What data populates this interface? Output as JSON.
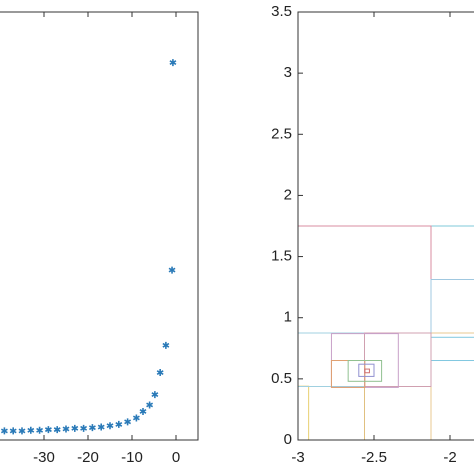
{
  "chart_data": [
    {
      "type": "scatter",
      "color": "#2a7ab8",
      "marker": "asterisk",
      "x": [
        -39,
        -37,
        -35,
        -33,
        -31,
        -29,
        -27,
        -25,
        -23,
        -21,
        -19,
        -17,
        -15,
        -13,
        -11,
        -9,
        -7.5,
        -6,
        -4.8,
        -3.6,
        -2.3,
        -0.9,
        -0.7
      ],
      "values": [
        0.07,
        0.07,
        0.07,
        0.075,
        0.075,
        0.08,
        0.08,
        0.085,
        0.09,
        0.09,
        0.095,
        0.1,
        0.11,
        0.12,
        0.14,
        0.17,
        0.22,
        0.27,
        0.35,
        0.52,
        0.73,
        1.31,
        2.91
      ],
      "xlim": [
        -41,
        5
      ],
      "xticks": [
        -30,
        -20,
        -10,
        0
      ],
      "ylim": [
        0,
        3.3
      ]
    },
    {
      "type": "rect",
      "rects": [
        {
          "x": [
            -3,
            0.5
          ],
          "y": [
            0,
            3.5
          ],
          "color": "#8fb8d8"
        },
        {
          "x": [
            -3,
            -1.25
          ],
          "y": [
            0,
            1.75
          ],
          "color": "#7fc8d8"
        },
        {
          "x": [
            -3,
            -2.125
          ],
          "y": [
            0.875,
            1.75
          ],
          "color": "#d88ca0"
        },
        {
          "x": [
            -2.125,
            -1.25
          ],
          "y": [
            0.875,
            1.3125
          ],
          "color": "#a0c8e0"
        },
        {
          "x": [
            -3,
            -2.125
          ],
          "y": [
            0,
            0.875
          ],
          "color": "#c090c8"
        },
        {
          "x": [
            -2.125,
            -1.25
          ],
          "y": [
            0,
            0.875
          ],
          "color": "#e8c890"
        },
        {
          "x": [
            -2.125,
            -1.8
          ],
          "y": [
            0.65,
            0.84
          ],
          "color": "#80c8e0"
        },
        {
          "x": [
            -3,
            -2.5625
          ],
          "y": [
            0,
            0.4375
          ],
          "color": "#e0c080"
        },
        {
          "x": [
            -3,
            -2.93
          ],
          "y": [
            0,
            0.44
          ],
          "color": "#e8d070"
        },
        {
          "x": [
            -3,
            -2.5625
          ],
          "y": [
            0.4375,
            0.875
          ],
          "color": "#a0d0e0"
        },
        {
          "x": [
            -2.5625,
            -2.125
          ],
          "y": [
            0.4375,
            0.875
          ],
          "color": "#d0a0b0"
        },
        {
          "x": [
            -2.78,
            -2.34
          ],
          "y": [
            0.43,
            0.87
          ],
          "color": "#c8a0c8"
        },
        {
          "x": [
            -2.78,
            -2.56
          ],
          "y": [
            0.43,
            0.65
          ],
          "color": "#e0a070"
        },
        {
          "x": [
            -2.67,
            -2.45
          ],
          "y": [
            0.48,
            0.65
          ],
          "color": "#90c090"
        },
        {
          "x": [
            -2.6,
            -2.5
          ],
          "y": [
            0.52,
            0.62
          ],
          "color": "#9090d0"
        },
        {
          "x": [
            -2.56,
            -2.53
          ],
          "y": [
            0.55,
            0.58
          ],
          "color": "#d07070"
        }
      ],
      "xlim": [
        -3,
        -1.75
      ],
      "xticks": [
        -3,
        -2.5,
        -2
      ],
      "ylim": [
        0,
        3.5
      ],
      "yticks": [
        0,
        0.5,
        1,
        1.5,
        2,
        2.5,
        3,
        3.5
      ]
    }
  ]
}
